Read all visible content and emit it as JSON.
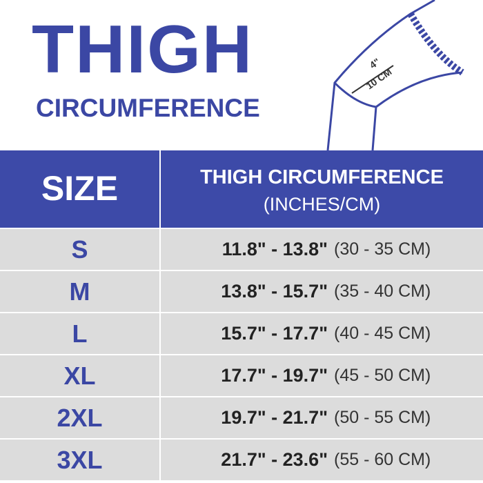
{
  "header": {
    "title": "THIGH",
    "subtitle": "CIRCUMFERENCE"
  },
  "illustration": {
    "inch_label": "4\"",
    "cm_label": "10 CM"
  },
  "table": {
    "head": {
      "size": "SIZE",
      "measurement": "THIGH CIRCUMFERENCE",
      "units": "(INCHES/CM)"
    },
    "rows": [
      [
        "S",
        "11.8\" - 13.8\"",
        "(30 - 35 CM)"
      ],
      [
        "M",
        "13.8\" - 15.7\"",
        "(35 - 40 CM)"
      ],
      [
        "L",
        "15.7\" - 17.7\"",
        "(40 - 45 CM)"
      ],
      [
        "XL",
        "17.7\" - 19.7\"",
        "(45 - 50 CM)"
      ],
      [
        "2XL",
        "19.7\" - 21.7\"",
        "(50 - 55 CM)"
      ],
      [
        "3XL",
        "21.7\" - 23.6\"",
        "(55 - 60 CM)"
      ]
    ]
  }
}
